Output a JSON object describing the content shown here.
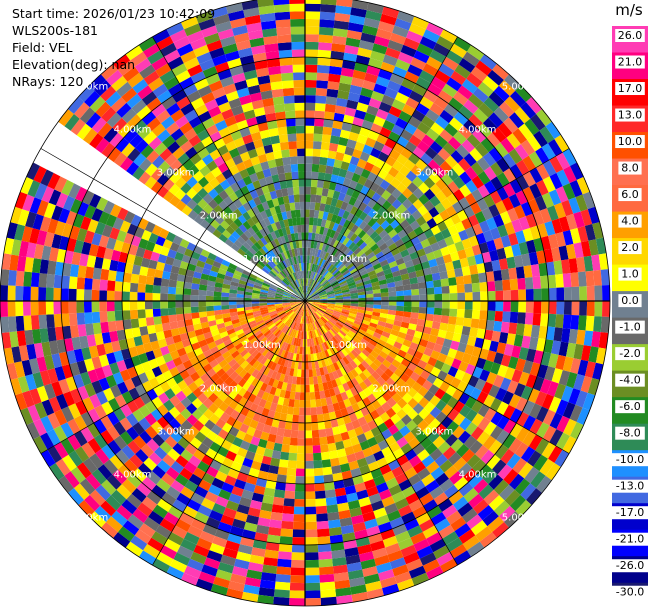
{
  "info": {
    "start_time": "Start time: 2026/01/23 10:42:09",
    "station": "WLS200s-181",
    "field": "Field: VEL",
    "elevation": "Elevation(deg): nan",
    "nrays": "NRays: 120"
  },
  "chart_data": {
    "type": "heatmap",
    "projection": "polar-ppi",
    "n_rays": 120,
    "range_unit": "km",
    "ring_labels": [
      "1.00km",
      "2.00km",
      "3.00km",
      "4.00km",
      "5.00km"
    ],
    "ring_radii_km": [
      1,
      2,
      3,
      4,
      5
    ],
    "max_range_km": 5.0,
    "blank_sector_azimuth_deg": [
      -62,
      -55
    ],
    "colorbar": {
      "unit_label": "m/s",
      "ticks": [
        26.0,
        21.0,
        17.0,
        13.0,
        10.0,
        8.0,
        6.0,
        4.0,
        2.0,
        1.0,
        0.0,
        -1.0,
        -2.0,
        -4.0,
        -6.0,
        -8.0,
        -10.0,
        -13.0,
        -17.0,
        -21.0,
        -26.0,
        -30.0
      ],
      "tick_labels": [
        "26.0",
        "21.0",
        "17.0",
        "13.0",
        "10.0",
        "8.0",
        "6.0",
        "4.0",
        "2.0",
        "1.0",
        "0.0",
        "-1.0",
        "-2.0",
        "-4.0",
        "-6.0",
        "-8.0",
        "-10.0",
        "-13.0",
        "-17.0",
        "-21.0",
        "-26.0",
        "-30.0"
      ],
      "colors": [
        "#ff3cb4",
        "#ff0080",
        "#ff0000",
        "#ff2828",
        "#ff5000",
        "#ff7050",
        "#ff6a40",
        "#ff9f00",
        "#ffd700",
        "#ffff00",
        "#708090",
        "#696969",
        "#9acd32",
        "#6b8e23",
        "#228b22",
        "#2e8b57",
        "#1e90ff",
        "#4169e1",
        "#0000cd",
        "#0000ff",
        "#00008b",
        "#191970"
      ]
    }
  }
}
